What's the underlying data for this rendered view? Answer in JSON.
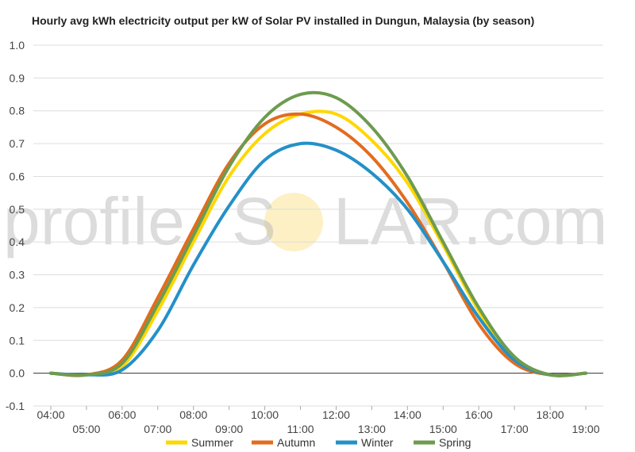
{
  "chart_data": {
    "type": "line",
    "title": "Hourly avg kWh electricity output per kW of Solar PV installed in Dungun, Malaysia (by season)",
    "xlabel": "",
    "ylabel": "",
    "ylim": [
      -0.1,
      1.0
    ],
    "yticks": [
      "-0.1",
      "0.0",
      "0.1",
      "0.2",
      "0.3",
      "0.4",
      "0.5",
      "0.6",
      "0.7",
      "0.8",
      "0.9",
      "1.0"
    ],
    "x": [
      "04:00",
      "05:00",
      "06:00",
      "07:00",
      "08:00",
      "09:00",
      "10:00",
      "11:00",
      "12:00",
      "13:00",
      "14:00",
      "15:00",
      "16:00",
      "17:00",
      "18:00",
      "19:00"
    ],
    "grid": true,
    "legend": "bottom",
    "series": [
      {
        "name": "Summer",
        "color": "#FFD700",
        "values": [
          0.0,
          -0.005,
          0.02,
          0.19,
          0.4,
          0.6,
          0.73,
          0.79,
          0.79,
          0.71,
          0.58,
          0.39,
          0.19,
          0.04,
          -0.005,
          0.0
        ]
      },
      {
        "name": "Autumn",
        "color": "#E36C1E",
        "values": [
          0.0,
          -0.005,
          0.04,
          0.23,
          0.44,
          0.64,
          0.76,
          0.79,
          0.75,
          0.66,
          0.52,
          0.34,
          0.15,
          0.03,
          -0.005,
          0.0
        ]
      },
      {
        "name": "Winter",
        "color": "#2490C8",
        "values": [
          0.0,
          -0.005,
          0.01,
          0.13,
          0.33,
          0.51,
          0.65,
          0.7,
          0.68,
          0.61,
          0.5,
          0.34,
          0.17,
          0.04,
          -0.005,
          0.0
        ]
      },
      {
        "name": "Spring",
        "color": "#6E9B4E",
        "values": [
          0.0,
          -0.005,
          0.03,
          0.21,
          0.42,
          0.63,
          0.78,
          0.85,
          0.84,
          0.75,
          0.6,
          0.4,
          0.2,
          0.05,
          -0.005,
          0.0
        ]
      }
    ]
  },
  "watermark": {
    "left": "profile",
    "right": "LAR.com",
    "sun_color": "#F8D55A"
  }
}
